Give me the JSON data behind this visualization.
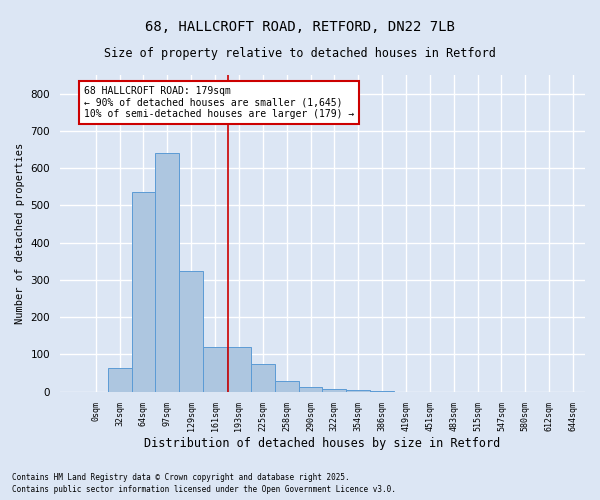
{
  "title1": "68, HALLCROFT ROAD, RETFORD, DN22 7LB",
  "title2": "Size of property relative to detached houses in Retford",
  "xlabel": "Distribution of detached houses by size in Retford",
  "ylabel": "Number of detached properties",
  "footer1": "Contains HM Land Registry data © Crown copyright and database right 2025.",
  "footer2": "Contains public sector information licensed under the Open Government Licence v3.0.",
  "annotation_line1": "68 HALLCROFT ROAD: 179sqm",
  "annotation_line2": "← 90% of detached houses are smaller (1,645)",
  "annotation_line3": "10% of semi-detached houses are larger (179) →",
  "bar_values": [
    0,
    65,
    535,
    640,
    325,
    120,
    120,
    75,
    30,
    12,
    8,
    5,
    1,
    0,
    0,
    0,
    0,
    0,
    0,
    0
  ],
  "bin_labels": [
    "0sqm",
    "32sqm",
    "64sqm",
    "97sqm",
    "129sqm",
    "161sqm",
    "193sqm",
    "225sqm",
    "258sqm",
    "290sqm",
    "322sqm",
    "354sqm",
    "386sqm",
    "419sqm",
    "451sqm",
    "483sqm",
    "515sqm",
    "547sqm",
    "580sqm",
    "612sqm",
    "644sqm"
  ],
  "bar_color": "#adc6e0",
  "bar_edge_color": "#5b9bd5",
  "red_line_x": 5.5625,
  "ylim": [
    0,
    850
  ],
  "yticks": [
    0,
    100,
    200,
    300,
    400,
    500,
    600,
    700,
    800
  ],
  "background_color": "#dce6f4",
  "grid_color": "#ffffff",
  "annotation_box_color": "#ffffff",
  "annotation_box_edge": "#cc0000"
}
